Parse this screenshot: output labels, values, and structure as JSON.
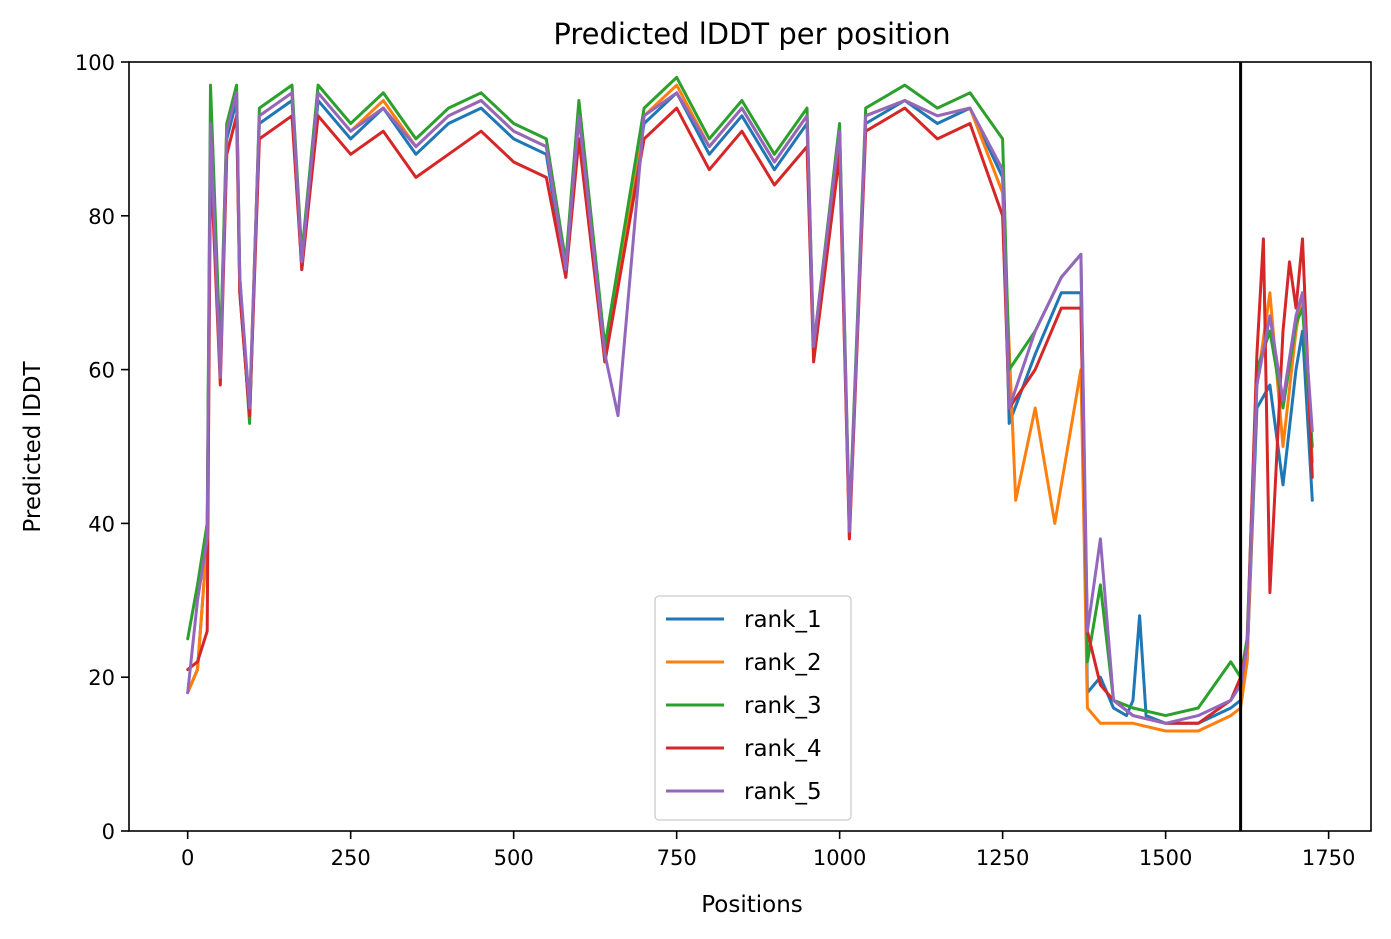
{
  "chart_data": {
    "type": "line",
    "title": "Predicted lDDT per position",
    "xlabel": "Positions",
    "ylabel": "Predicted lDDT",
    "xlim": [
      -90,
      1815
    ],
    "ylim": [
      0,
      100
    ],
    "xticks": [
      0,
      250,
      500,
      750,
      1000,
      1250,
      1500,
      1750
    ],
    "yticks": [
      0,
      20,
      40,
      60,
      80,
      100
    ],
    "grid": false,
    "legend_position": "bottom-center",
    "vline_x": 1615,
    "series": [
      {
        "name": "rank_1",
        "color": "#1f77b4",
        "points": [
          [
            0,
            18
          ],
          [
            15,
            21
          ],
          [
            30,
            38
          ],
          [
            35,
            90
          ],
          [
            50,
            60
          ],
          [
            60,
            90
          ],
          [
            75,
            95
          ],
          [
            80,
            70
          ],
          [
            95,
            54
          ],
          [
            110,
            92
          ],
          [
            160,
            95
          ],
          [
            175,
            73
          ],
          [
            200,
            95
          ],
          [
            250,
            90
          ],
          [
            300,
            94
          ],
          [
            350,
            88
          ],
          [
            400,
            92
          ],
          [
            450,
            94
          ],
          [
            500,
            90
          ],
          [
            550,
            88
          ],
          [
            580,
            72
          ],
          [
            600,
            93
          ],
          [
            640,
            61
          ],
          [
            700,
            92
          ],
          [
            750,
            96
          ],
          [
            800,
            88
          ],
          [
            850,
            93
          ],
          [
            900,
            86
          ],
          [
            950,
            92
          ],
          [
            960,
            62
          ],
          [
            1000,
            90
          ],
          [
            1015,
            39
          ],
          [
            1040,
            92
          ],
          [
            1100,
            95
          ],
          [
            1150,
            92
          ],
          [
            1200,
            94
          ],
          [
            1250,
            85
          ],
          [
            1260,
            53
          ],
          [
            1300,
            62
          ],
          [
            1340,
            70
          ],
          [
            1370,
            70
          ],
          [
            1380,
            18
          ],
          [
            1400,
            20
          ],
          [
            1420,
            16
          ],
          [
            1440,
            15
          ],
          [
            1450,
            17
          ],
          [
            1460,
            28
          ],
          [
            1470,
            15
          ],
          [
            1500,
            14
          ],
          [
            1550,
            14
          ],
          [
            1600,
            16
          ],
          [
            1615,
            17
          ],
          [
            1625,
            22
          ],
          [
            1640,
            55
          ],
          [
            1660,
            58
          ],
          [
            1680,
            45
          ],
          [
            1700,
            60
          ],
          [
            1710,
            65
          ],
          [
            1725,
            43
          ]
        ]
      },
      {
        "name": "rank_2",
        "color": "#ff7f0e",
        "points": [
          [
            0,
            18
          ],
          [
            15,
            21
          ],
          [
            30,
            38
          ],
          [
            35,
            91
          ],
          [
            50,
            61
          ],
          [
            60,
            92
          ],
          [
            75,
            96
          ],
          [
            80,
            71
          ],
          [
            95,
            55
          ],
          [
            110,
            93
          ],
          [
            160,
            96
          ],
          [
            175,
            74
          ],
          [
            200,
            96
          ],
          [
            250,
            91
          ],
          [
            300,
            95
          ],
          [
            350,
            89
          ],
          [
            400,
            93
          ],
          [
            450,
            95
          ],
          [
            500,
            91
          ],
          [
            550,
            89
          ],
          [
            580,
            73
          ],
          [
            600,
            94
          ],
          [
            640,
            62
          ],
          [
            700,
            93
          ],
          [
            750,
            97
          ],
          [
            800,
            89
          ],
          [
            850,
            94
          ],
          [
            900,
            87
          ],
          [
            950,
            93
          ],
          [
            960,
            62
          ],
          [
            1000,
            91
          ],
          [
            1015,
            38
          ],
          [
            1040,
            93
          ],
          [
            1100,
            95
          ],
          [
            1150,
            93
          ],
          [
            1200,
            94
          ],
          [
            1250,
            83
          ],
          [
            1270,
            43
          ],
          [
            1300,
            55
          ],
          [
            1330,
            40
          ],
          [
            1370,
            60
          ],
          [
            1380,
            16
          ],
          [
            1400,
            14
          ],
          [
            1420,
            14
          ],
          [
            1450,
            14
          ],
          [
            1500,
            13
          ],
          [
            1550,
            13
          ],
          [
            1600,
            15
          ],
          [
            1615,
            16
          ],
          [
            1625,
            22
          ],
          [
            1640,
            58
          ],
          [
            1660,
            70
          ],
          [
            1680,
            50
          ],
          [
            1700,
            65
          ],
          [
            1710,
            70
          ],
          [
            1725,
            48
          ]
        ]
      },
      {
        "name": "rank_3",
        "color": "#2ca02c",
        "points": [
          [
            0,
            25
          ],
          [
            15,
            32
          ],
          [
            30,
            40
          ],
          [
            35,
            97
          ],
          [
            50,
            62
          ],
          [
            60,
            92
          ],
          [
            75,
            97
          ],
          [
            80,
            72
          ],
          [
            95,
            53
          ],
          [
            110,
            94
          ],
          [
            160,
            97
          ],
          [
            175,
            75
          ],
          [
            200,
            97
          ],
          [
            250,
            92
          ],
          [
            300,
            96
          ],
          [
            350,
            90
          ],
          [
            400,
            94
          ],
          [
            450,
            96
          ],
          [
            500,
            92
          ],
          [
            550,
            90
          ],
          [
            580,
            74
          ],
          [
            600,
            95
          ],
          [
            640,
            63
          ],
          [
            700,
            94
          ],
          [
            750,
            98
          ],
          [
            800,
            90
          ],
          [
            850,
            95
          ],
          [
            900,
            88
          ],
          [
            950,
            94
          ],
          [
            960,
            63
          ],
          [
            1000,
            92
          ],
          [
            1015,
            40
          ],
          [
            1040,
            94
          ],
          [
            1100,
            97
          ],
          [
            1150,
            94
          ],
          [
            1200,
            96
          ],
          [
            1250,
            90
          ],
          [
            1260,
            60
          ],
          [
            1300,
            65
          ],
          [
            1340,
            72
          ],
          [
            1370,
            75
          ],
          [
            1380,
            22
          ],
          [
            1400,
            32
          ],
          [
            1420,
            17
          ],
          [
            1450,
            16
          ],
          [
            1500,
            15
          ],
          [
            1550,
            16
          ],
          [
            1600,
            22
          ],
          [
            1615,
            20
          ],
          [
            1625,
            25
          ],
          [
            1640,
            60
          ],
          [
            1660,
            65
          ],
          [
            1680,
            55
          ],
          [
            1700,
            66
          ],
          [
            1710,
            68
          ],
          [
            1725,
            50
          ]
        ]
      },
      {
        "name": "rank_4",
        "color": "#d62728",
        "points": [
          [
            0,
            21
          ],
          [
            15,
            22
          ],
          [
            30,
            26
          ],
          [
            35,
            88
          ],
          [
            50,
            58
          ],
          [
            60,
            88
          ],
          [
            75,
            93
          ],
          [
            80,
            70
          ],
          [
            95,
            54
          ],
          [
            110,
            90
          ],
          [
            160,
            93
          ],
          [
            175,
            73
          ],
          [
            200,
            93
          ],
          [
            250,
            88
          ],
          [
            300,
            91
          ],
          [
            350,
            85
          ],
          [
            400,
            88
          ],
          [
            450,
            91
          ],
          [
            500,
            87
          ],
          [
            550,
            85
          ],
          [
            580,
            72
          ],
          [
            600,
            90
          ],
          [
            640,
            61
          ],
          [
            700,
            90
          ],
          [
            750,
            94
          ],
          [
            800,
            86
          ],
          [
            850,
            91
          ],
          [
            900,
            84
          ],
          [
            950,
            89
          ],
          [
            960,
            61
          ],
          [
            1000,
            88
          ],
          [
            1015,
            38
          ],
          [
            1040,
            91
          ],
          [
            1100,
            94
          ],
          [
            1150,
            90
          ],
          [
            1200,
            92
          ],
          [
            1250,
            80
          ],
          [
            1260,
            55
          ],
          [
            1300,
            60
          ],
          [
            1340,
            68
          ],
          [
            1370,
            68
          ],
          [
            1380,
            26
          ],
          [
            1400,
            19
          ],
          [
            1420,
            17
          ],
          [
            1450,
            15
          ],
          [
            1500,
            14
          ],
          [
            1550,
            14
          ],
          [
            1600,
            17
          ],
          [
            1615,
            20
          ],
          [
            1625,
            24
          ],
          [
            1640,
            62
          ],
          [
            1650,
            77
          ],
          [
            1660,
            31
          ],
          [
            1680,
            65
          ],
          [
            1690,
            74
          ],
          [
            1700,
            68
          ],
          [
            1710,
            77
          ],
          [
            1725,
            46
          ]
        ]
      },
      {
        "name": "rank_5",
        "color": "#9467bd",
        "points": [
          [
            0,
            18
          ],
          [
            15,
            30
          ],
          [
            30,
            38
          ],
          [
            35,
            92
          ],
          [
            50,
            59
          ],
          [
            60,
            91
          ],
          [
            75,
            96
          ],
          [
            80,
            72
          ],
          [
            95,
            55
          ],
          [
            110,
            93
          ],
          [
            160,
            96
          ],
          [
            175,
            74
          ],
          [
            200,
            96
          ],
          [
            250,
            91
          ],
          [
            300,
            94
          ],
          [
            350,
            89
          ],
          [
            400,
            93
          ],
          [
            450,
            95
          ],
          [
            500,
            91
          ],
          [
            550,
            89
          ],
          [
            580,
            73
          ],
          [
            600,
            93
          ],
          [
            640,
            62
          ],
          [
            660,
            54
          ],
          [
            700,
            93
          ],
          [
            750,
            96
          ],
          [
            800,
            89
          ],
          [
            850,
            94
          ],
          [
            900,
            87
          ],
          [
            950,
            93
          ],
          [
            960,
            63
          ],
          [
            1000,
            91
          ],
          [
            1015,
            39
          ],
          [
            1040,
            93
          ],
          [
            1100,
            95
          ],
          [
            1150,
            93
          ],
          [
            1200,
            94
          ],
          [
            1250,
            86
          ],
          [
            1260,
            55
          ],
          [
            1300,
            65
          ],
          [
            1340,
            72
          ],
          [
            1370,
            75
          ],
          [
            1380,
            26
          ],
          [
            1400,
            38
          ],
          [
            1420,
            17
          ],
          [
            1450,
            15
          ],
          [
            1500,
            14
          ],
          [
            1550,
            15
          ],
          [
            1600,
            17
          ],
          [
            1615,
            19
          ],
          [
            1625,
            24
          ],
          [
            1640,
            58
          ],
          [
            1660,
            67
          ],
          [
            1680,
            56
          ],
          [
            1700,
            67
          ],
          [
            1710,
            70
          ],
          [
            1725,
            52
          ]
        ]
      }
    ]
  }
}
